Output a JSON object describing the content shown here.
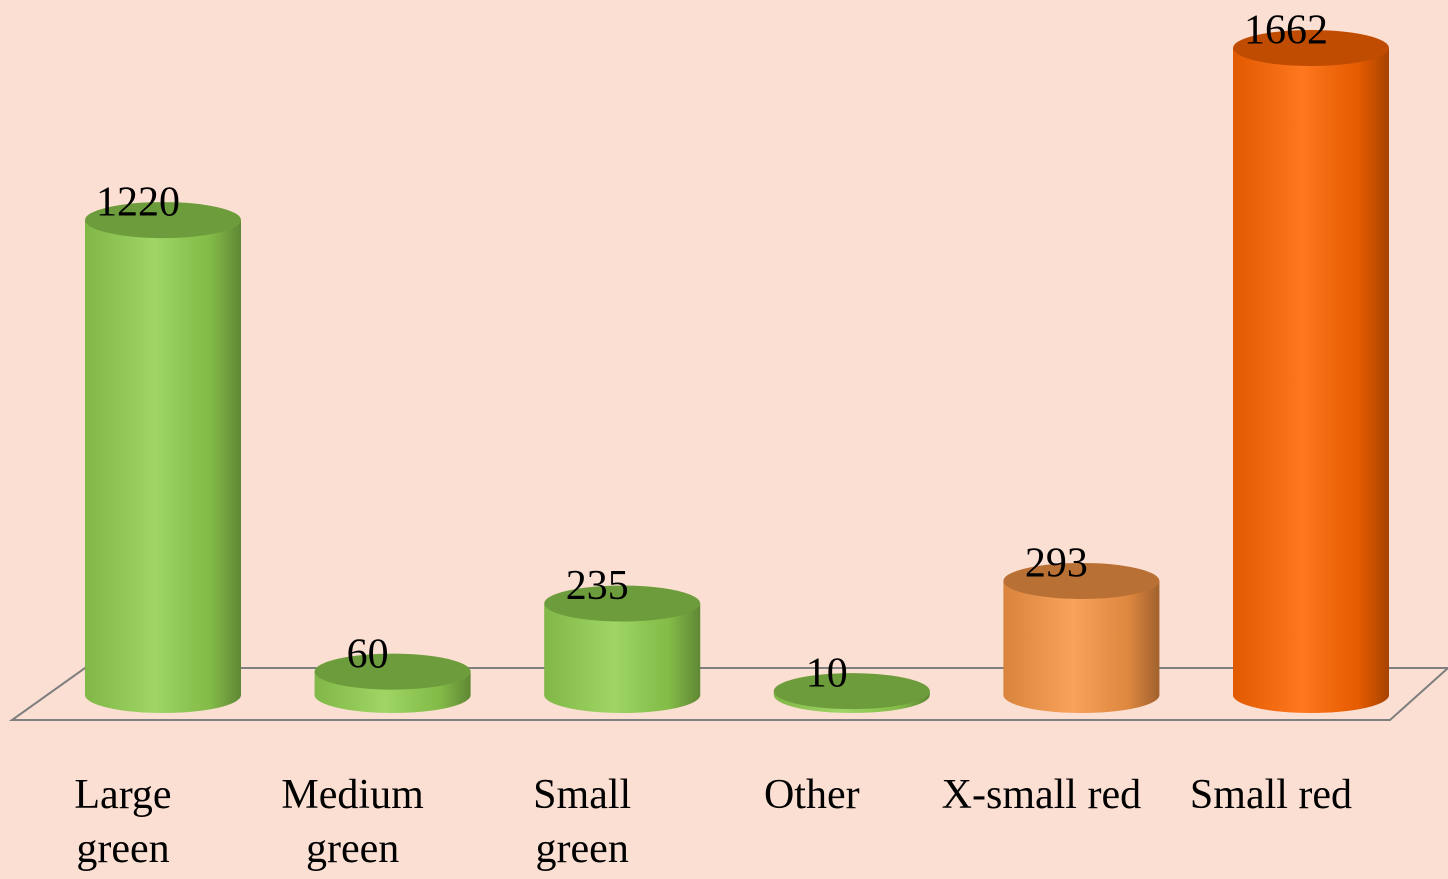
{
  "chart_data": {
    "type": "bar",
    "categories": [
      "Large green",
      "Medium green",
      "Small green",
      "Other",
      "X-small red",
      "Small red"
    ],
    "values": [
      1220,
      60,
      235,
      10,
      293,
      1662
    ],
    "colors": [
      "#92d050",
      "#92d050",
      "#92d050",
      "#92d050",
      "#f79646",
      "#ff6600"
    ]
  }
}
